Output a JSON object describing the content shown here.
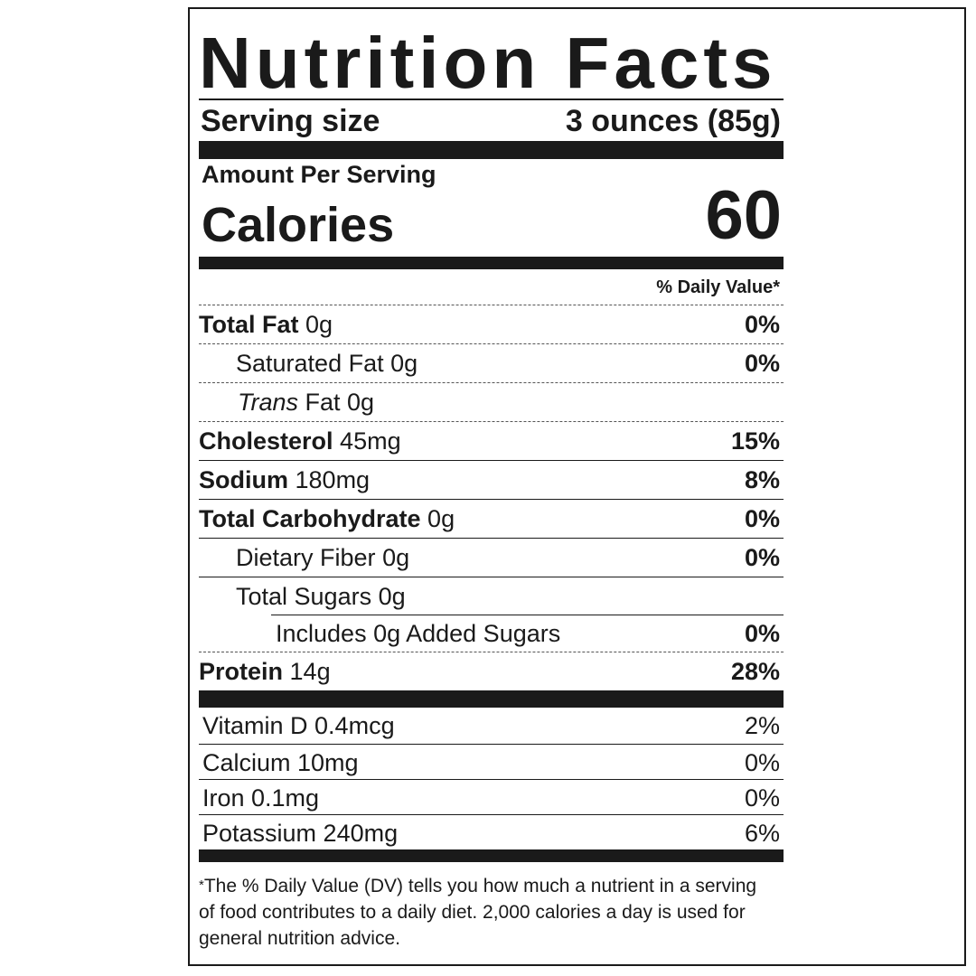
{
  "title": "Nutrition Facts",
  "serving": {
    "label": "Serving size",
    "value": "3 ounces (85g)"
  },
  "amount_per_serving": "Amount Per Serving",
  "calories": {
    "label": "Calories",
    "value": "60"
  },
  "daily_value_header": "% Daily Value*",
  "nutrients": [
    {
      "name": "Total Fat",
      "amount": "0g",
      "dv": "0%"
    },
    {
      "name": "Saturated Fat",
      "amount": "0g",
      "dv": "0%"
    },
    {
      "name": "Trans",
      "amount": "Fat 0g",
      "dv": ""
    },
    {
      "name": "Cholesterol",
      "amount": "45mg",
      "dv": "15%"
    },
    {
      "name": "Sodium",
      "amount": "180mg",
      "dv": "8%"
    },
    {
      "name": "Total Carbohydrate",
      "amount": "0g",
      "dv": "0%"
    },
    {
      "name": "Dietary Fiber",
      "amount": "0g",
      "dv": "0%"
    },
    {
      "name": "Total Sugars",
      "amount": "0g",
      "dv": ""
    },
    {
      "name": "Includes 0g Added Sugars",
      "amount": "",
      "dv": "0%"
    },
    {
      "name": "Protein",
      "amount": "14g",
      "dv": "28%"
    }
  ],
  "vitamins": [
    {
      "name": "Vitamin D 0.4mcg",
      "dv": "2%"
    },
    {
      "name": "Calcium 10mg",
      "dv": "0%"
    },
    {
      "name": "Iron 0.1mg",
      "dv": "0%"
    },
    {
      "name": "Potassium 240mg",
      "dv": "6%"
    }
  ],
  "footnote_mark": "*",
  "footnote": "The % Daily Value (DV) tells you how much a nutrient in a serving of food contributes to a daily diet. 2,000 calories a day is used for general nutrition advice."
}
